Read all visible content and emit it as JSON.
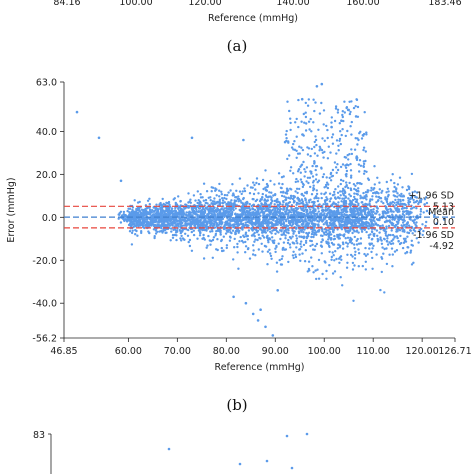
{
  "panel_labels": [
    "(a)",
    "(b)"
  ],
  "top_partial": {
    "x_ticks": [
      "84.16",
      "100.00",
      "120.00",
      "140.00",
      "160.00",
      "183.46"
    ],
    "xlabel": "Reference (mmHg)"
  },
  "bottom_partial": {
    "y_tick_top": "83"
  },
  "chart_data": {
    "type": "scatter",
    "title": "",
    "xlabel": "Reference (mmHg)",
    "ylabel": "Error (mmHg)",
    "xlim": [
      46.85,
      126.71
    ],
    "ylim": [
      -56.2,
      63.0
    ],
    "x_ticks": [
      "46.85",
      "60.00",
      "70.00",
      "80.00",
      "90.00",
      "100.00",
      "110.00",
      "120.00",
      "126.71"
    ],
    "x_tick_values": [
      46.85,
      60,
      70,
      80,
      90,
      100,
      110,
      120,
      126.71
    ],
    "y_ticks": [
      "63.0",
      "40.0",
      "20.0",
      "0.0",
      "-20.0",
      "-40.0",
      "-56.2"
    ],
    "y_tick_values": [
      63.0,
      40.0,
      20.0,
      0.0,
      -20.0,
      -40.0,
      -56.2
    ],
    "point_color": "#5b9bea",
    "reference_lines": [
      {
        "name": "+1.96 SD",
        "value": 5.13,
        "label": "5.13",
        "color": "#e8463c",
        "style": "dashed"
      },
      {
        "name": "Mean",
        "value": 0.1,
        "label": "0.10",
        "color": "#3f7fcf",
        "style": "dashed"
      },
      {
        "name": "-1.96 SD",
        "value": -4.92,
        "label": "-4.92",
        "color": "#e8463c",
        "style": "dashed"
      }
    ],
    "outliers": [
      [
        49.5,
        49.0
      ],
      [
        54.0,
        37.0
      ],
      [
        58.5,
        17.0
      ],
      [
        73.0,
        37.0
      ],
      [
        83.5,
        36.0
      ],
      [
        92.0,
        35.0
      ],
      [
        95.5,
        55.0
      ],
      [
        98.5,
        61.0
      ],
      [
        99.5,
        62.0
      ],
      [
        103.5,
        45.0
      ],
      [
        105.0,
        50.0
      ],
      [
        106.5,
        47.0
      ],
      [
        101.5,
        42.0
      ],
      [
        85.5,
        -45.0
      ],
      [
        86.5,
        -48.0
      ],
      [
        88.0,
        -51.0
      ],
      [
        89.5,
        -55.0
      ],
      [
        84.0,
        -40.0
      ],
      [
        81.5,
        -37.0
      ],
      [
        90.5,
        -34.0
      ],
      [
        87.0,
        -43.0
      ],
      [
        121.0,
        3.0
      ],
      [
        122.5,
        1.0
      ],
      [
        124.5,
        -1.0
      ],
      [
        123.0,
        -3.0
      ],
      [
        121.5,
        2.0
      ],
      [
        119.5,
        -6.0
      ],
      [
        120.5,
        6.0
      ],
      [
        118.0,
        10.0
      ],
      [
        116.5,
        -11.0
      ]
    ]
  }
}
